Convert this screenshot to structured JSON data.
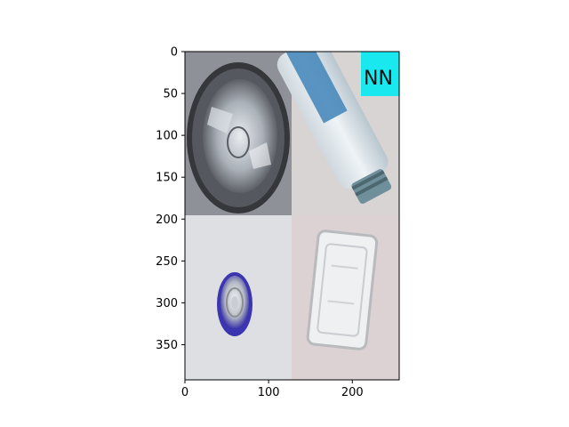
{
  "figure": {
    "panels": [
      {
        "name": "aluminium-tray",
        "colors": {
          "bg": "#8e9197",
          "rim": "#3b3d41",
          "foil": "#c7ccd2",
          "dark": "#2b2c30"
        }
      },
      {
        "name": "plastic-bottle",
        "colors": {
          "bg": "#d9d4d4",
          "glass": "#e4ebef",
          "label": "#3f84b8",
          "cap": "#6f8f9a"
        }
      },
      {
        "name": "bottle-cap",
        "colors": {
          "bg": "#dedfe2",
          "ring": "#3b35b0",
          "metal": "#d9dde0"
        }
      },
      {
        "name": "plastic-container",
        "colors": {
          "bg": "#dcd1d3",
          "plastic": "#eef0f1",
          "edge": "#b8babd"
        }
      }
    ],
    "annotation": {
      "text": "NN",
      "color": "#19e8ee"
    }
  },
  "chart_data": {
    "type": "image",
    "xlim": [
      0,
      256
    ],
    "ylim": [
      392,
      0
    ],
    "xticks": [
      0,
      100,
      200
    ],
    "yticks": [
      0,
      50,
      100,
      150,
      200,
      250,
      300,
      350
    ],
    "xtick_labels": [
      "0",
      "100",
      "200"
    ],
    "ytick_labels": [
      "0",
      "50",
      "100",
      "150",
      "200",
      "250",
      "300",
      "350"
    ]
  }
}
